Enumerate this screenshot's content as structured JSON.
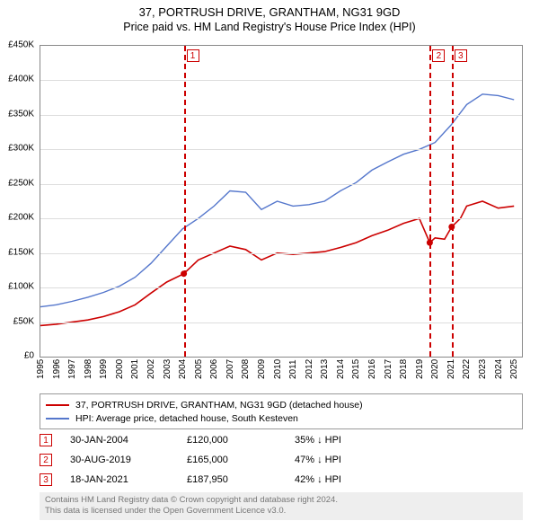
{
  "title": "37, PORTRUSH DRIVE, GRANTHAM, NG31 9GD",
  "subtitle": "Price paid vs. HM Land Registry's House Price Index (HPI)",
  "chart": {
    "type": "line",
    "background_color": "#ffffff",
    "grid_color": "#dddddd",
    "axis_color": "#888888",
    "title_fontsize": 13,
    "label_fontsize": 10,
    "y": {
      "min": 0,
      "max": 450000,
      "step": 50000,
      "prefix": "£",
      "suffix": "K",
      "ticks": [
        0,
        50000,
        100000,
        150000,
        200000,
        250000,
        300000,
        350000,
        400000,
        450000
      ],
      "tick_labels": [
        "£0",
        "£50K",
        "£100K",
        "£150K",
        "£200K",
        "£250K",
        "£300K",
        "£350K",
        "£400K",
        "£450K"
      ]
    },
    "x": {
      "min": 1995,
      "max": 2025.5,
      "ticks": [
        1995,
        1996,
        1997,
        1998,
        1999,
        2000,
        2001,
        2002,
        2003,
        2004,
        2005,
        2006,
        2007,
        2008,
        2009,
        2010,
        2011,
        2012,
        2013,
        2014,
        2015,
        2016,
        2017,
        2018,
        2019,
        2020,
        2021,
        2022,
        2023,
        2024,
        2025
      ]
    },
    "series": [
      {
        "key": "price_paid",
        "label": "37, PORTRUSH DRIVE, GRANTHAM, NG31 9GD (detached house)",
        "color": "#cc0000",
        "line_width": 1.6,
        "points": [
          [
            1995,
            45000
          ],
          [
            1996,
            47000
          ],
          [
            1997,
            50000
          ],
          [
            1998,
            53000
          ],
          [
            1999,
            58000
          ],
          [
            2000,
            65000
          ],
          [
            2001,
            75000
          ],
          [
            2002,
            92000
          ],
          [
            2003,
            108000
          ],
          [
            2004.08,
            120000
          ],
          [
            2005,
            140000
          ],
          [
            2006,
            150000
          ],
          [
            2007,
            160000
          ],
          [
            2008,
            155000
          ],
          [
            2009,
            140000
          ],
          [
            2010,
            150000
          ],
          [
            2011,
            148000
          ],
          [
            2012,
            150000
          ],
          [
            2013,
            152000
          ],
          [
            2014,
            158000
          ],
          [
            2015,
            165000
          ],
          [
            2016,
            175000
          ],
          [
            2017,
            183000
          ],
          [
            2018,
            193000
          ],
          [
            2019,
            200000
          ],
          [
            2019.66,
            165000
          ],
          [
            2020,
            172000
          ],
          [
            2020.6,
            170000
          ],
          [
            2021.05,
            187950
          ],
          [
            2021.6,
            200000
          ],
          [
            2022,
            218000
          ],
          [
            2023,
            225000
          ],
          [
            2024,
            215000
          ],
          [
            2025,
            218000
          ]
        ],
        "markers": [
          {
            "x": 2004.08,
            "y": 120000
          },
          {
            "x": 2019.66,
            "y": 165000
          },
          {
            "x": 2021.05,
            "y": 187950
          }
        ]
      },
      {
        "key": "hpi",
        "label": "HPI: Average price, detached house, South Kesteven",
        "color": "#5577cc",
        "line_width": 1.4,
        "points": [
          [
            1995,
            72000
          ],
          [
            1996,
            75000
          ],
          [
            1997,
            80000
          ],
          [
            1998,
            86000
          ],
          [
            1999,
            93000
          ],
          [
            2000,
            102000
          ],
          [
            2001,
            115000
          ],
          [
            2002,
            135000
          ],
          [
            2003,
            160000
          ],
          [
            2004,
            185000
          ],
          [
            2005,
            200000
          ],
          [
            2006,
            218000
          ],
          [
            2007,
            240000
          ],
          [
            2008,
            238000
          ],
          [
            2009,
            213000
          ],
          [
            2010,
            225000
          ],
          [
            2011,
            218000
          ],
          [
            2012,
            220000
          ],
          [
            2013,
            225000
          ],
          [
            2014,
            240000
          ],
          [
            2015,
            252000
          ],
          [
            2016,
            270000
          ],
          [
            2017,
            282000
          ],
          [
            2018,
            293000
          ],
          [
            2019,
            300000
          ],
          [
            2020,
            310000
          ],
          [
            2021,
            335000
          ],
          [
            2022,
            365000
          ],
          [
            2023,
            380000
          ],
          [
            2024,
            378000
          ],
          [
            2025,
            372000
          ]
        ]
      }
    ],
    "event_lines": [
      {
        "n": "1",
        "x": 2004.08
      },
      {
        "n": "2",
        "x": 2019.66
      },
      {
        "n": "3",
        "x": 2021.05
      }
    ]
  },
  "legend": {
    "border_color": "#999999",
    "rows": [
      {
        "color": "#cc0000",
        "label": "37, PORTRUSH DRIVE, GRANTHAM, NG31 9GD (detached house)"
      },
      {
        "color": "#5577cc",
        "label": "HPI: Average price, detached house, South Kesteven"
      }
    ]
  },
  "events": [
    {
      "n": "1",
      "date": "30-JAN-2004",
      "price": "£120,000",
      "diff": "35% ↓ HPI"
    },
    {
      "n": "2",
      "date": "30-AUG-2019",
      "price": "£165,000",
      "diff": "47% ↓ HPI"
    },
    {
      "n": "3",
      "date": "18-JAN-2021",
      "price": "£187,950",
      "diff": "42% ↓ HPI"
    }
  ],
  "attribution": {
    "line1": "Contains HM Land Registry data © Crown copyright and database right 2024.",
    "line2": "This data is licensed under the Open Government Licence v3.0."
  },
  "colors": {
    "event_red": "#cc0000",
    "attrib_bg": "#eeeeee",
    "attrib_text": "#777777"
  }
}
